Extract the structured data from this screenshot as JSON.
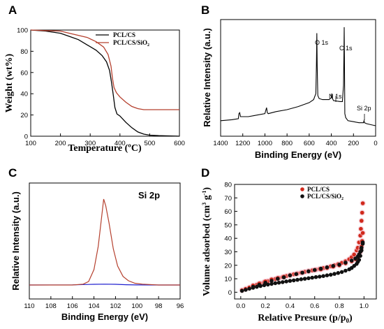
{
  "chart_data": [
    {
      "panel": "A",
      "type": "line",
      "xlabel": "Temperature (ºC)",
      "ylabel": "Weight (wt%)",
      "xlim": [
        100,
        600
      ],
      "ylim": [
        0,
        100
      ],
      "xticks": [
        "100",
        "200",
        "300",
        "400",
        "500",
        "600"
      ],
      "yticks": [
        "0",
        "20",
        "40",
        "60",
        "80",
        "100"
      ],
      "legend_position": "top-right",
      "series": [
        {
          "name": "PCL/CS",
          "color": "#000000",
          "x": [
            100,
            150,
            200,
            230,
            260,
            290,
            320,
            340,
            355,
            365,
            372,
            378,
            383,
            390,
            400,
            420,
            440,
            460,
            480,
            500,
            530,
            560,
            600
          ],
          "y": [
            100,
            99,
            97,
            94,
            91,
            86,
            81,
            76,
            70,
            62,
            50,
            38,
            27,
            21,
            19,
            13,
            8,
            4,
            2,
            1,
            0.5,
            0.3,
            0
          ]
        },
        {
          "name": "PCL/CS/SiO2",
          "color": "#b5402e",
          "x": [
            100,
            150,
            200,
            230,
            260,
            290,
            320,
            345,
            360,
            370,
            375,
            380,
            388,
            400,
            420,
            440,
            460,
            480,
            500,
            530,
            560,
            600
          ],
          "y": [
            100,
            99.5,
            99,
            97,
            95,
            93,
            89,
            84,
            77,
            66,
            54,
            46,
            41,
            37,
            32,
            28,
            26,
            25,
            25,
            25,
            25,
            25
          ]
        }
      ],
      "legend_main": [
        "PCL/CS",
        "PCL/CS/SiO"
      ],
      "legend_sub": "2"
    },
    {
      "panel": "B",
      "type": "line",
      "xlabel": "Binding Energy (eV)",
      "ylabel": "Relative Intensity (a.u.)",
      "xlim": [
        1400,
        0
      ],
      "xticks": [
        "1400",
        "1200",
        "1000",
        "800",
        "600",
        "400",
        "200",
        "0"
      ],
      "color": "#000000",
      "series": [
        {
          "x": [
            1400,
            1300,
            1240,
            1235,
            1228,
            1220,
            1150,
            1100,
            1000,
            985,
            978,
            970,
            900,
            800,
            700,
            600,
            560,
            540,
            535,
            531,
            528,
            522,
            510,
            480,
            420,
            400,
            397,
            394,
            380,
            320,
            300,
            290,
            286,
            284,
            282,
            278,
            270,
            250,
            200,
            150,
            110,
            105,
            100,
            80,
            40,
            0
          ],
          "y": [
            5,
            6,
            7,
            12,
            13,
            9,
            9,
            10,
            12,
            18,
            13,
            12,
            14,
            16,
            19,
            23,
            26,
            32,
            60,
            92,
            60,
            30,
            27,
            26,
            26,
            28,
            32,
            28,
            25,
            24,
            24,
            40,
            70,
            98,
            70,
            12,
            8,
            5,
            4,
            3,
            3,
            5,
            3,
            2,
            1,
            0
          ]
        }
      ],
      "annotations": [
        "O 1s",
        "C 1s",
        "N 1s",
        "Si 2p"
      ]
    },
    {
      "panel": "C",
      "type": "line",
      "title": "Si 2p",
      "xlabel": "Binding Energy (eV)",
      "ylabel": "Relative Intensity (a.u.)",
      "xlim": [
        110,
        96
      ],
      "xticks": [
        "110",
        "108",
        "106",
        "104",
        "102",
        "100",
        "98",
        "96"
      ],
      "series": [
        {
          "color": "#b5402e",
          "x": [
            110,
            106,
            105,
            104.5,
            104,
            103.6,
            103.3,
            103.1,
            102.9,
            102.6,
            102.2,
            101.8,
            101.3,
            100.8,
            100.2,
            99.5,
            98,
            96
          ],
          "y": [
            0,
            0,
            1,
            4,
            18,
            45,
            78,
            100,
            92,
            72,
            42,
            22,
            10,
            5,
            2,
            1,
            0,
            0
          ]
        },
        {
          "color": "#1f1fcf",
          "x": [
            110,
            106,
            104,
            103,
            102,
            101,
            100,
            98,
            96
          ],
          "y": [
            0,
            0.2,
            0.8,
            1.0,
            0.8,
            0.3,
            0.1,
            0,
            0
          ]
        }
      ]
    },
    {
      "panel": "D",
      "type": "scatter",
      "xlabel_main": "Relative Presure (p/p",
      "xlabel_sub": "0",
      "xlabel_end": ")",
      "ylabel_main": "Volume adsorbed (cm",
      "ylabel_sup1": "3",
      "ylabel_mid": " g",
      "ylabel_sup2": "-1",
      "ylabel_end": ")",
      "xlim": [
        -0.05,
        1.1
      ],
      "ylim": [
        -5,
        80
      ],
      "xticks": [
        "0.0",
        "0.2",
        "0.4",
        "0.6",
        "0.8",
        "1.0"
      ],
      "yticks": [
        "0",
        "10",
        "20",
        "30",
        "40",
        "50",
        "60",
        "70",
        "80"
      ],
      "legend_position": "top-right",
      "series": [
        {
          "name": "PCL/CS",
          "color": "#d0291b",
          "x": [
            0.01,
            0.04,
            0.07,
            0.1,
            0.13,
            0.16,
            0.19,
            0.22,
            0.25,
            0.28,
            0.31,
            0.34,
            0.37,
            0.4,
            0.43,
            0.46,
            0.49,
            0.52,
            0.55,
            0.58,
            0.61,
            0.64,
            0.67,
            0.7,
            0.73,
            0.76,
            0.79,
            0.82,
            0.85,
            0.88,
            0.9,
            0.92,
            0.94,
            0.95,
            0.96,
            0.97,
            0.975,
            0.98,
            0.985,
            0.99,
            0.99,
            0.985,
            0.98,
            0.975,
            0.97,
            0.96,
            0.95,
            0.93,
            0.9,
            0.85,
            0.8,
            0.75,
            0.7,
            0.65,
            0.6,
            0.55,
            0.5,
            0.45,
            0.4,
            0.35,
            0.3,
            0.25,
            0.2,
            0.15,
            0.1
          ],
          "y": [
            1.5,
            2.5,
            3.5,
            4.5,
            5.5,
            6.5,
            7.5,
            8.2,
            9,
            9.8,
            10.5,
            11.2,
            12,
            12.7,
            13.3,
            13.9,
            14.5,
            15.1,
            15.7,
            16.2,
            16.7,
            17.3,
            17.9,
            18.5,
            19.2,
            20,
            20.8,
            21.8,
            23,
            24.5,
            26,
            28,
            31,
            33,
            37,
            42,
            47,
            53,
            59,
            66,
            44,
            38,
            34,
            32,
            30,
            28,
            26,
            24.5,
            23,
            21.5,
            20,
            19,
            18,
            17,
            16.5,
            15.5,
            14.5,
            13.5,
            12.5,
            11.5,
            10.5,
            9.5,
            8,
            6.5,
            5
          ]
        },
        {
          "name": "PCL/CS/SiO2",
          "color": "#111111",
          "x": [
            0.01,
            0.04,
            0.07,
            0.1,
            0.13,
            0.16,
            0.19,
            0.22,
            0.25,
            0.28,
            0.31,
            0.34,
            0.37,
            0.4,
            0.43,
            0.46,
            0.49,
            0.52,
            0.55,
            0.58,
            0.61,
            0.64,
            0.67,
            0.7,
            0.73,
            0.76,
            0.79,
            0.82,
            0.85,
            0.88,
            0.9,
            0.92,
            0.94,
            0.95,
            0.96,
            0.97,
            0.98,
            0.99,
            0.99,
            0.98,
            0.97,
            0.96,
            0.95,
            0.93,
            0.9,
            0.85,
            0.8,
            0.75,
            0.7,
            0.65,
            0.6,
            0.55,
            0.5,
            0.45,
            0.4,
            0.35,
            0.3,
            0.25,
            0.2,
            0.15,
            0.1
          ],
          "y": [
            1,
            1.8,
            2.6,
            3.3,
            4,
            4.6,
            5.2,
            5.7,
            6.2,
            6.7,
            7.1,
            7.5,
            8,
            8.4,
            8.8,
            9.2,
            9.6,
            10,
            10.4,
            10.8,
            11.2,
            11.6,
            12,
            12.5,
            13,
            13.6,
            14.3,
            15,
            16,
            17,
            18,
            19.5,
            21,
            22.5,
            24,
            27,
            31,
            36,
            37,
            33,
            30,
            28,
            26.5,
            25,
            23.5,
            22,
            20.5,
            19.5,
            18.5,
            17.5,
            16.5,
            15.5,
            14.5,
            13.5,
            12.5,
            11,
            10,
            8.5,
            7,
            5.5,
            4
          ]
        }
      ],
      "legend_main": [
        "PCL/CS",
        "PCL/CS/SiO"
      ],
      "legend_sub": "2"
    }
  ]
}
